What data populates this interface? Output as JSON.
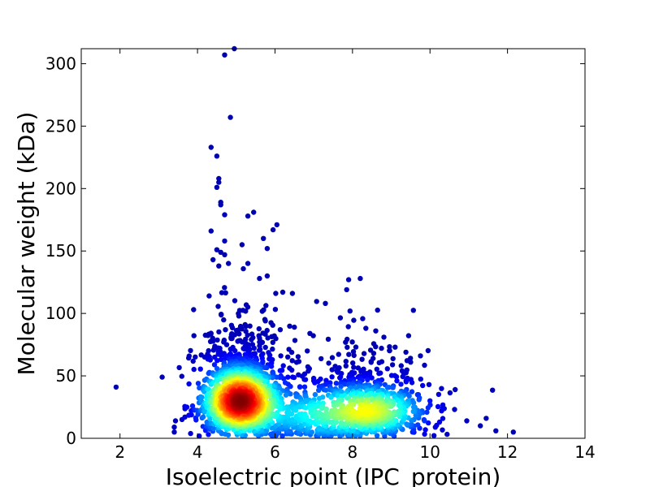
{
  "chart_data": {
    "type": "scatter",
    "title": "",
    "xlabel": "Isoelectric point (IPC_protein)",
    "ylabel": "Molecular weight (kDa)",
    "xlim": [
      1,
      14
    ],
    "ylim": [
      0,
      312
    ],
    "xticks": [
      2,
      4,
      6,
      8,
      10,
      12,
      14
    ],
    "yticks": [
      0,
      50,
      100,
      150,
      200,
      250,
      300
    ],
    "colormap": "jet (point density)",
    "grid": false,
    "legend": "none",
    "clusters": [
      {
        "center_x": 5.1,
        "center_y": 30,
        "spread_x": 0.5,
        "spread_y": 16,
        "share": 0.58
      },
      {
        "center_x": 8.4,
        "center_y": 22,
        "spread_x": 0.75,
        "spread_y": 13,
        "share": 0.3
      },
      {
        "center_x": 6.8,
        "center_y": 18,
        "spread_x": 0.7,
        "spread_y": 14,
        "share": 0.12
      }
    ],
    "outliers": [
      {
        "x": 1.9,
        "y": 41
      },
      {
        "x": 4.7,
        "y": 307
      },
      {
        "x": 4.95,
        "y": 312
      },
      {
        "x": 4.85,
        "y": 257
      },
      {
        "x": 4.35,
        "y": 233
      },
      {
        "x": 4.5,
        "y": 226
      },
      {
        "x": 4.55,
        "y": 208
      },
      {
        "x": 4.55,
        "y": 205
      },
      {
        "x": 4.5,
        "y": 201
      },
      {
        "x": 4.6,
        "y": 189
      },
      {
        "x": 4.6,
        "y": 187
      },
      {
        "x": 5.45,
        "y": 181
      },
      {
        "x": 5.3,
        "y": 178
      },
      {
        "x": 4.7,
        "y": 179
      },
      {
        "x": 6.05,
        "y": 171
      },
      {
        "x": 5.95,
        "y": 167
      },
      {
        "x": 4.35,
        "y": 166
      },
      {
        "x": 5.7,
        "y": 160
      },
      {
        "x": 4.7,
        "y": 158
      },
      {
        "x": 5.15,
        "y": 155
      },
      {
        "x": 5.8,
        "y": 152
      },
      {
        "x": 4.5,
        "y": 151
      },
      {
        "x": 4.6,
        "y": 149
      },
      {
        "x": 4.7,
        "y": 147
      },
      {
        "x": 4.8,
        "y": 140
      },
      {
        "x": 5.3,
        "y": 140
      },
      {
        "x": 4.4,
        "y": 143
      },
      {
        "x": 4.55,
        "y": 138
      },
      {
        "x": 5.6,
        "y": 128
      },
      {
        "x": 8.2,
        "y": 128
      },
      {
        "x": 7.9,
        "y": 127
      },
      {
        "x": 5.8,
        "y": 130
      },
      {
        "x": 7.85,
        "y": 119
      },
      {
        "x": 6.2,
        "y": 117
      },
      {
        "x": 6.45,
        "y": 116
      },
      {
        "x": 4.3,
        "y": 114
      },
      {
        "x": 7.3,
        "y": 108
      },
      {
        "x": 3.9,
        "y": 103
      },
      {
        "x": 10.65,
        "y": 39
      },
      {
        "x": 12.15,
        "y": 5
      },
      {
        "x": 11.7,
        "y": 6
      },
      {
        "x": 11.45,
        "y": 16
      },
      {
        "x": 11.3,
        "y": 10
      },
      {
        "x": 10.95,
        "y": 14
      },
      {
        "x": 3.4,
        "y": 9
      },
      {
        "x": 3.4,
        "y": 5
      },
      {
        "x": 3.6,
        "y": 15
      },
      {
        "x": 6.5,
        "y": 89
      },
      {
        "x": 6.9,
        "y": 84
      },
      {
        "x": 8.6,
        "y": 86
      },
      {
        "x": 9.1,
        "y": 73
      },
      {
        "x": 9.5,
        "y": 61
      },
      {
        "x": 9.7,
        "y": 35
      },
      {
        "x": 10.0,
        "y": 30
      },
      {
        "x": 10.3,
        "y": 22
      }
    ]
  }
}
